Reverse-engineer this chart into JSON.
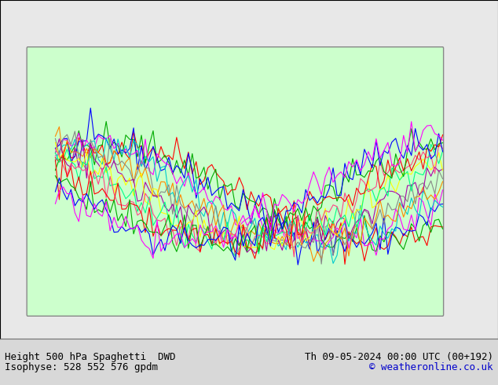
{
  "title_left": "Height 500 hPa Spaghetti  DWD",
  "title_right": "Th 09-05-2024 00:00 UTC (00+192)",
  "subtitle_left": "Isophyse: 528 552 576 gpdm",
  "subtitle_right": "© weatheronline.co.uk",
  "subtitle_right_color": "#0000cc",
  "background_color": "#d8d8d8",
  "land_color": "#ccffcc",
  "ocean_color": "#e8e8e8",
  "border_color": "#888888",
  "text_color": "#000000",
  "fig_width": 6.34,
  "fig_height": 4.9,
  "dpi": 100,
  "bottom_bar_color": "#ffffff",
  "bottom_bar_height": 0.12,
  "font_size_title": 9,
  "font_size_subtitle": 9,
  "spaghetti_colors": [
    "#ff0000",
    "#00aa00",
    "#0000ff",
    "#ff00ff",
    "#00cccc",
    "#ff8800",
    "#888888",
    "#aa00aa",
    "#ffff00",
    "#00ff88",
    "#ff4488"
  ],
  "contour_levels": [
    528,
    552,
    576
  ]
}
